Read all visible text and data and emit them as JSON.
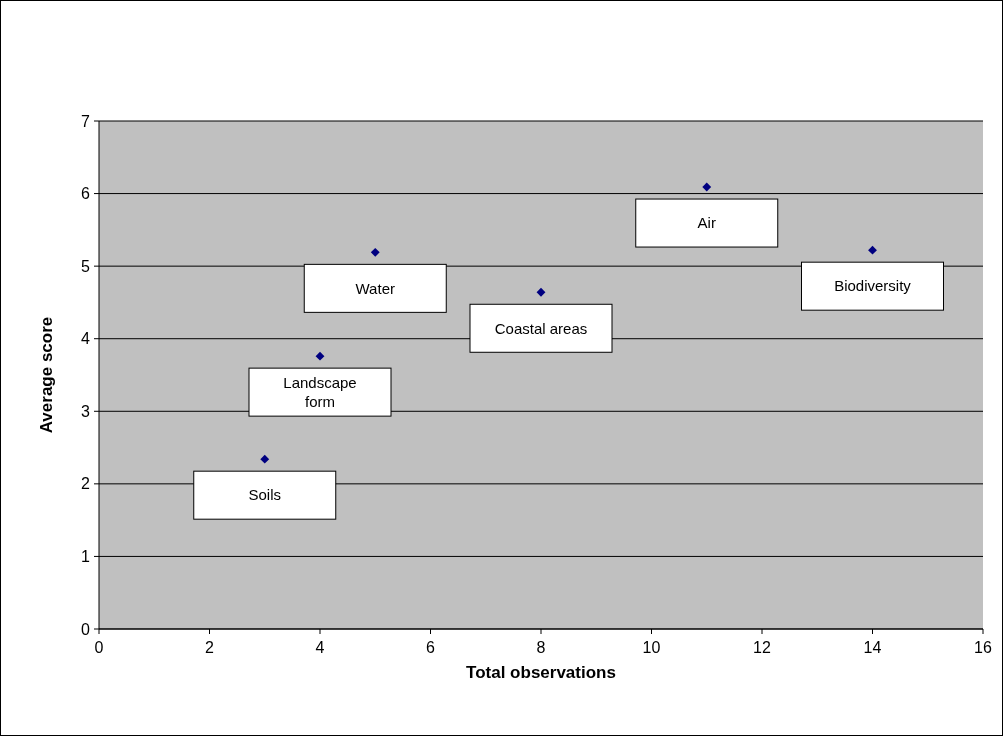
{
  "chart_data": {
    "type": "scatter",
    "xlabel": "Total observations",
    "ylabel": "Average score",
    "x": [
      3,
      4,
      5,
      8,
      11,
      14
    ],
    "series": [
      {
        "color": "#000080",
        "values": [
          2.34,
          3.76,
          5.19,
          4.64,
          6.09,
          5.22
        ]
      }
    ],
    "xlim": [
      0,
      16
    ],
    "xticks": [
      0,
      2,
      4,
      6,
      8,
      10,
      12,
      14,
      16
    ],
    "ylim": [
      0,
      7
    ],
    "yticks": [
      0,
      1,
      2,
      3,
      4,
      5,
      6,
      7
    ],
    "grid": "y",
    "marker": "diamond",
    "annotations": [
      {
        "text": "Soils",
        "x": 3,
        "y": 2.34
      },
      {
        "text": "Landscape form",
        "x": 4,
        "y": 3.76
      },
      {
        "text": "Water",
        "x": 5,
        "y": 5.19
      },
      {
        "text": "Coastal areas",
        "x": 8,
        "y": 4.64
      },
      {
        "text": "Air",
        "x": 11,
        "y": 6.09
      },
      {
        "text": "Biodiversity",
        "x": 14,
        "y": 5.22
      }
    ]
  }
}
